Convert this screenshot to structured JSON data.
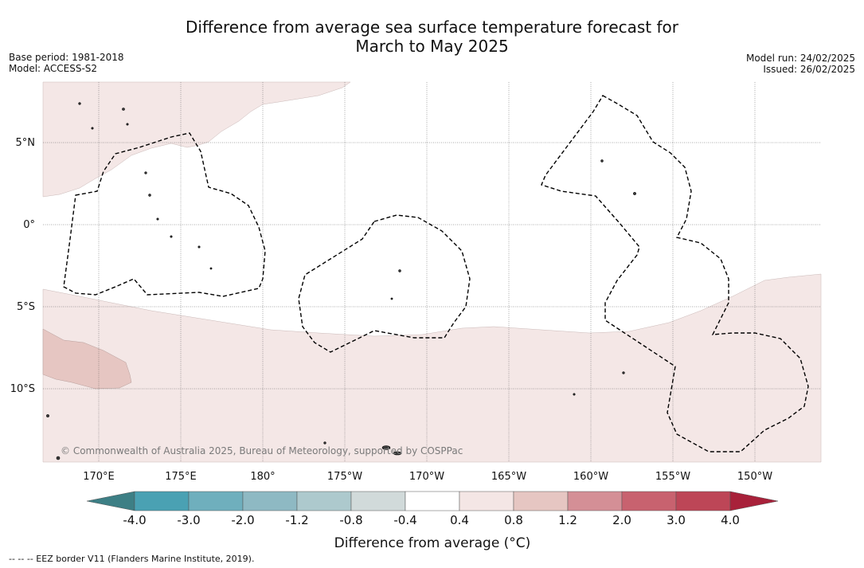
{
  "title_line1": "Difference from average sea surface temperature forecast for",
  "title_line2": "March to May 2025",
  "base_period": "Base period: 1981-2018",
  "model": "Model: ACCESS-S2",
  "model_run": "Model run: 24/02/2025",
  "issued": "Issued: 26/02/2025",
  "copyright": "© Commonwealth of Australia 2025, Bureau of Meteorology, supported by COSPPac",
  "longitude_labels": [
    "170°E",
    "175°E",
    "180°",
    "175°W",
    "170°W",
    "165°W",
    "160°W",
    "155°W",
    "150°W"
  ],
  "latitude_labels": [
    "5°N",
    "0°",
    "5°S",
    "10°S"
  ],
  "colorbar": {
    "title": "Difference from average (°C)",
    "ticks": [
      "-4.0",
      "-3.0",
      "-2.0",
      "-1.2",
      "-0.8",
      "-0.4",
      "0.4",
      "0.8",
      "1.2",
      "2.0",
      "3.0",
      "4.0"
    ],
    "under_color": "#3d7f85",
    "over_color": "#a8213a",
    "bin_colors": [
      "#4aa1b3",
      "#6fafbd",
      "#8eb9c3",
      "#adc9cd",
      "#d1dada",
      "#ffffff",
      "#f4e6e5",
      "#e6c6c2",
      "#d48f96",
      "#c8626f",
      "#bd4657"
    ]
  },
  "footer": "--  --  -- EEZ border V11 (Flanders Marine Institute, 2019).",
  "colors": {
    "warm_light": "#f4e7e6",
    "warm_medium": "#e6c6c2",
    "eez_border": "#000000"
  }
}
